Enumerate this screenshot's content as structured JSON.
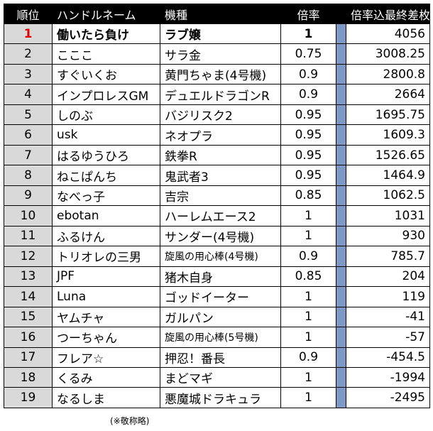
{
  "headers": {
    "rank": "順位",
    "name": "ハンドルネーム",
    "model": "機種",
    "rate": "倍率",
    "diff": "倍率込最終差枚"
  },
  "rows": [
    {
      "rank": "1",
      "name": "働いたら負け",
      "model": "ラブ嬢",
      "rate": "1",
      "diff": "4056"
    },
    {
      "rank": "2",
      "name": "こここ",
      "model": "サラ金",
      "rate": "0.75",
      "diff": "3008.25"
    },
    {
      "rank": "3",
      "name": "すぐいくお",
      "model": "黄門ちゃま(4号機)",
      "rate": "0.9",
      "diff": "2800.8"
    },
    {
      "rank": "4",
      "name": "インプロレスGM",
      "model": "デュエルドラゴンR",
      "rate": "0.9",
      "diff": "2664"
    },
    {
      "rank": "5",
      "name": "しのぶ",
      "model": "バジリスク2",
      "rate": "0.95",
      "diff": "1695.75"
    },
    {
      "rank": "6",
      "name": "usk",
      "model": "ネオプラ",
      "rate": "0.95",
      "diff": "1609.3"
    },
    {
      "rank": "7",
      "name": "はるゆうひろ",
      "model": "鉄拳R",
      "rate": "0.95",
      "diff": "1526.65"
    },
    {
      "rank": "8",
      "name": "ねこぱんち",
      "model": "鬼武者3",
      "rate": "0.95",
      "diff": "1464.9"
    },
    {
      "rank": "9",
      "name": "なべっ子",
      "model": "吉宗",
      "rate": "0.85",
      "diff": "1062.5"
    },
    {
      "rank": "10",
      "name": "ebotan",
      "model": "ハーレムエース2",
      "rate": "1",
      "diff": "1031"
    },
    {
      "rank": "11",
      "name": "ふるけん",
      "model": "サンダー(4号機)",
      "rate": "1",
      "diff": "930"
    },
    {
      "rank": "12",
      "name": "トリオレの三男",
      "model": "旋風の用心棒(4号機)",
      "rate": "0.9",
      "diff": "785.7"
    },
    {
      "rank": "13",
      "name": "JPF",
      "model": "猪木自身",
      "rate": "0.85",
      "diff": "204"
    },
    {
      "rank": "14",
      "name": "Luna",
      "model": "ゴッドイーター",
      "rate": "1",
      "diff": "119"
    },
    {
      "rank": "15",
      "name": "ヤムチャ",
      "model": "ガルパン",
      "rate": "1",
      "diff": "-41"
    },
    {
      "rank": "16",
      "name": "つーちゃん",
      "model": "旋風の用心棒(5号機)",
      "rate": "1",
      "diff": "-57"
    },
    {
      "rank": "17",
      "name": "フレア☆",
      "model": "押忍！番長",
      "rate": "0.9",
      "diff": "-454.5"
    },
    {
      "rank": "18",
      "name": "くるみ",
      "model": "まどマギ",
      "rate": "1",
      "diff": "-1994"
    },
    {
      "rank": "19",
      "name": "なるしま",
      "model": "悪魔城ドラキュラ",
      "rate": "1",
      "diff": "-2495"
    }
  ],
  "note": "(※敬称略)",
  "colors": {
    "header_bg": "#000000",
    "rank_bg": "#d9d9d9",
    "divider_bar": "#7f99c6",
    "first_rank": "#e00000"
  }
}
